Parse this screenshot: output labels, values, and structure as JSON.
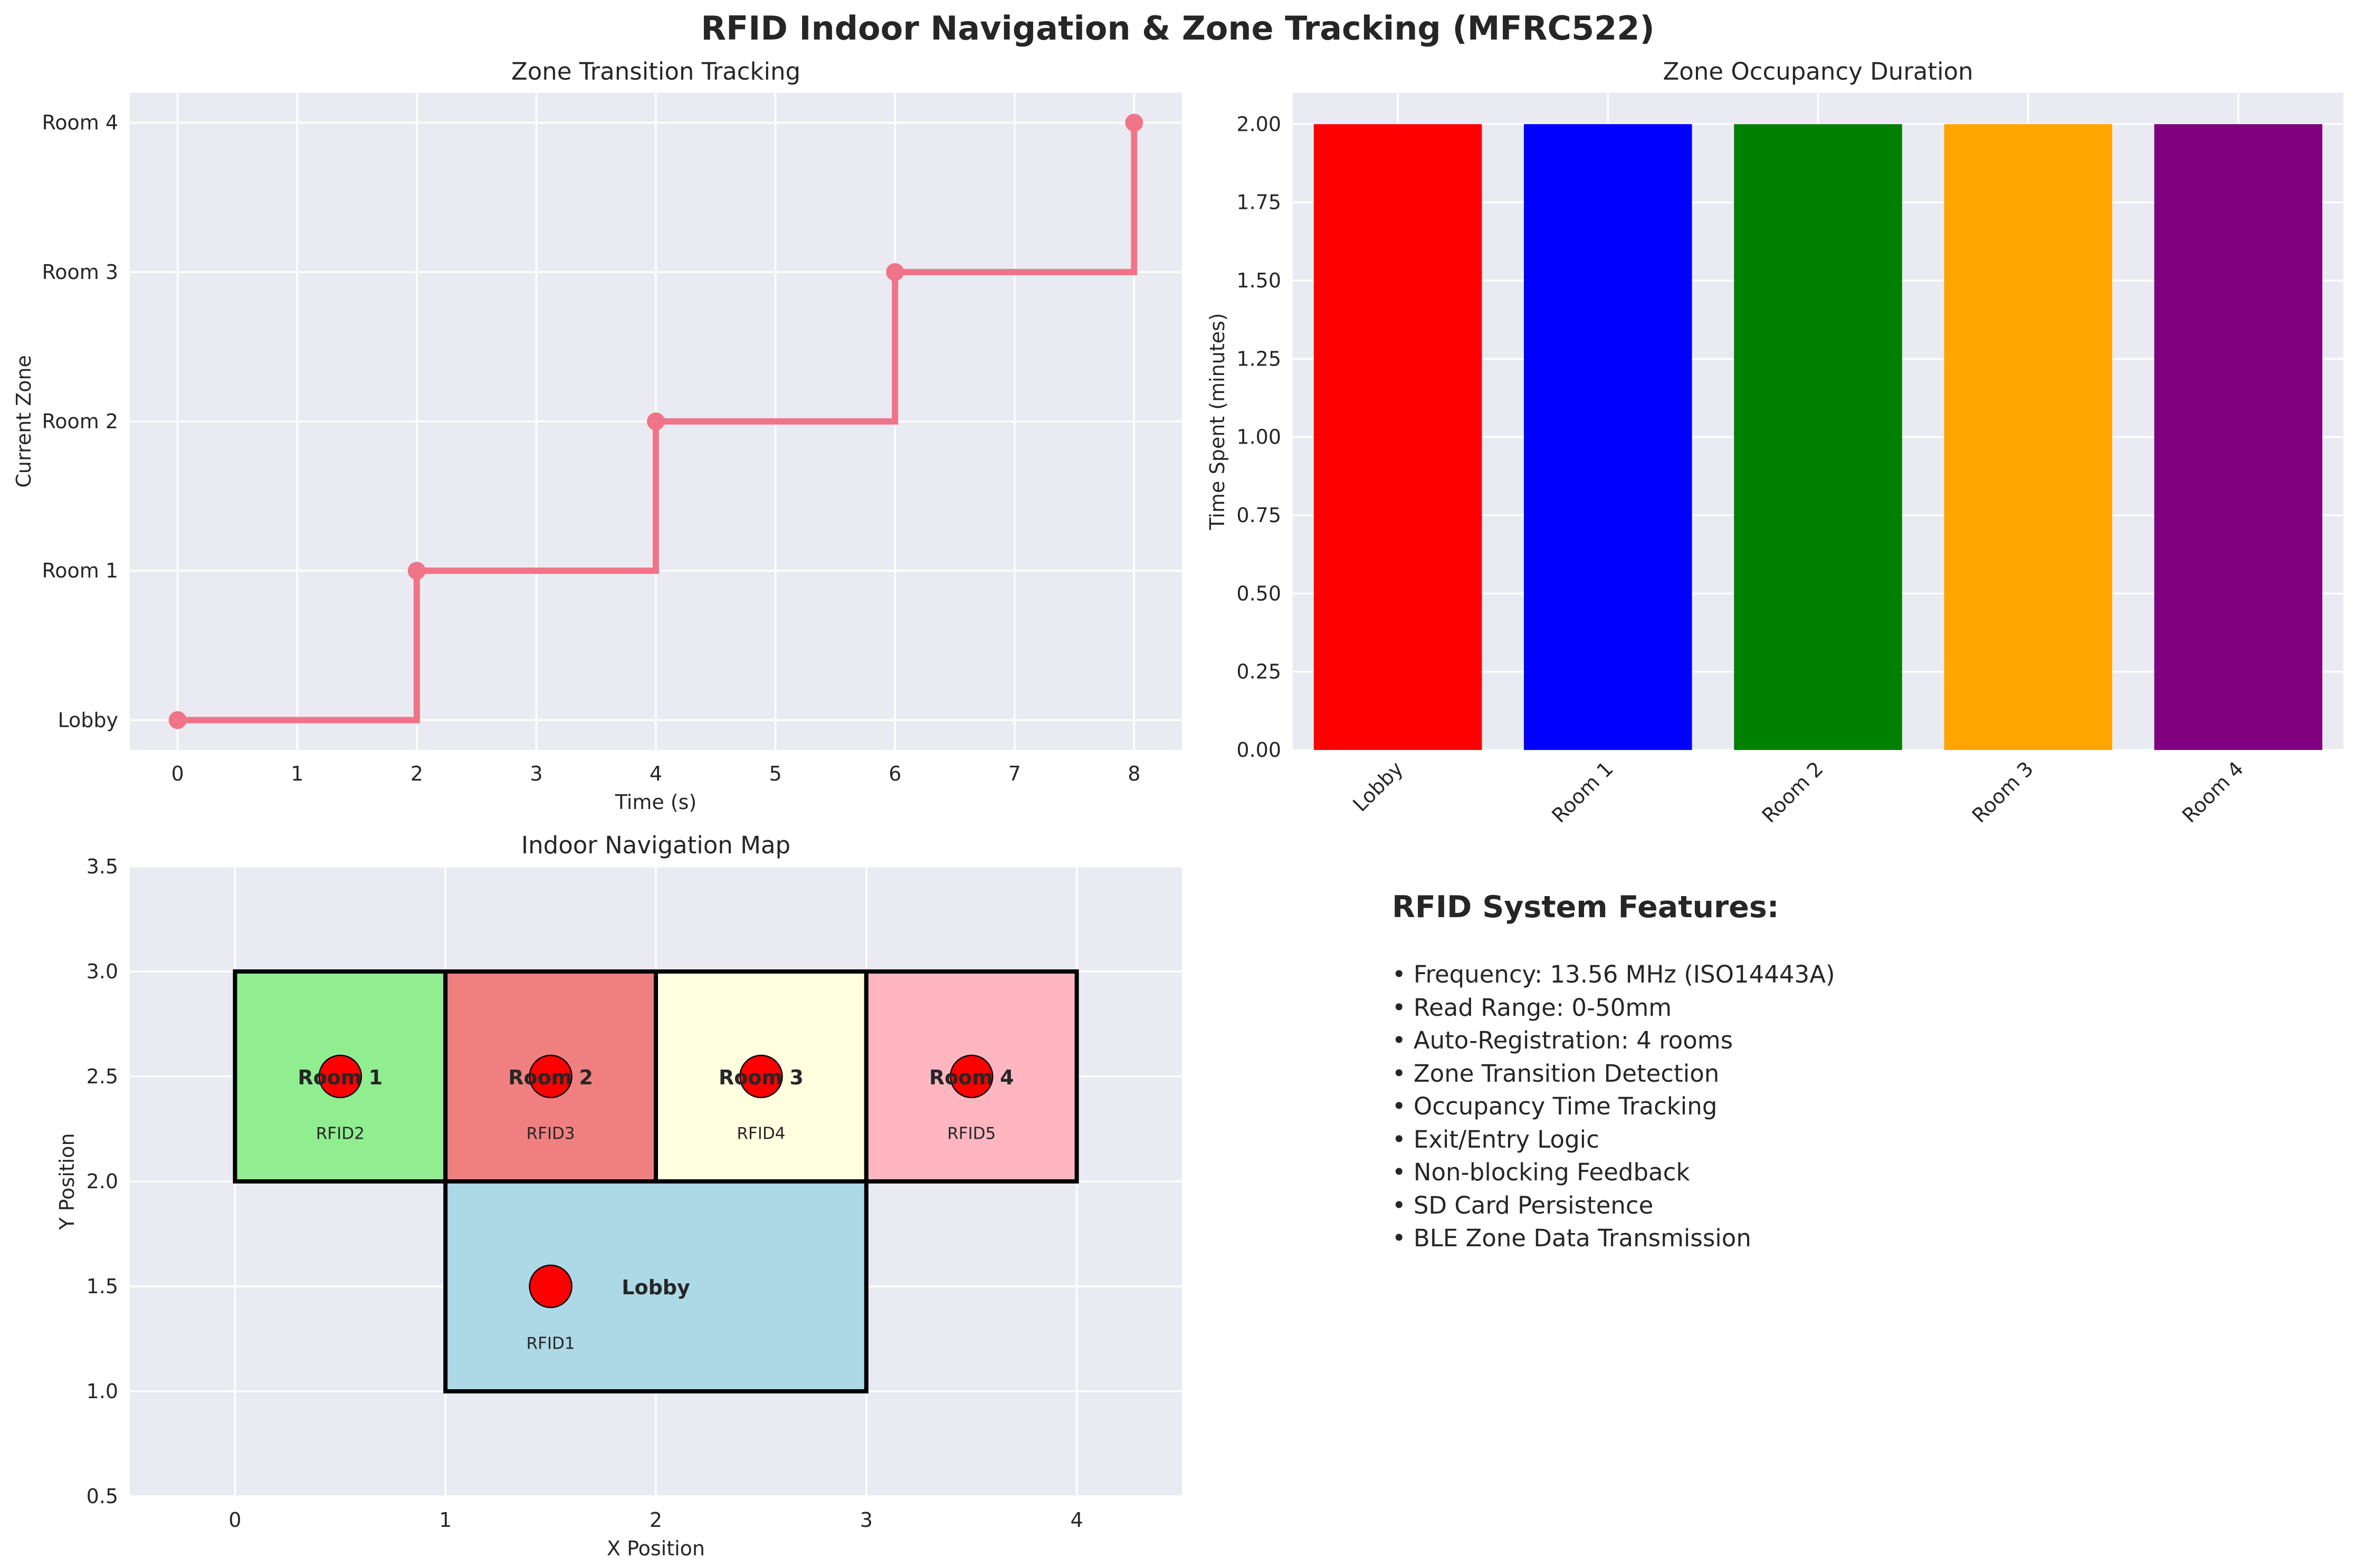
{
  "figure": {
    "title": "RFID Indoor Navigation & Zone Tracking (MFRC522)",
    "background": "#ffffff",
    "axes_face": "#eaeaf2",
    "grid_color": "#ffffff",
    "spine_color": "#000000"
  },
  "chart_data": [
    {
      "type": "line",
      "title": "Zone Transition Tracking",
      "xlabel": "Time (s)",
      "ylabel": "Current Zone",
      "line_style": "step",
      "color": "#f07487",
      "x": [
        0,
        2,
        4,
        6,
        8
      ],
      "y": [
        "Lobby",
        "Room 1",
        "Room 2",
        "Room 3",
        "Room 4"
      ],
      "y_categories": [
        "Lobby",
        "Room 1",
        "Room 2",
        "Room 3",
        "Room 4"
      ],
      "xlim": [
        -0.4,
        8.4
      ],
      "ylim": [
        -0.2,
        4.2
      ],
      "xticks": [
        0,
        1,
        2,
        3,
        4,
        5,
        6,
        7,
        8
      ],
      "grid": true
    },
    {
      "type": "bar",
      "title": "Zone Occupancy Duration",
      "xlabel": "",
      "ylabel": "Time Spent (minutes)",
      "categories": [
        "Lobby",
        "Room 1",
        "Room 2",
        "Room 3",
        "Room 4"
      ],
      "values": [
        2,
        2,
        2,
        2,
        2
      ],
      "colors": [
        "#ff0000",
        "#0000ff",
        "#008000",
        "#ffa500",
        "#800080"
      ],
      "ylim": [
        0,
        2.1
      ],
      "yticks": [
        "0.00",
        "0.25",
        "0.50",
        "0.75",
        "1.00",
        "1.25",
        "1.50",
        "1.75",
        "2.00"
      ],
      "xtick_rotation": 45,
      "grid": true
    },
    {
      "type": "map",
      "title": "Indoor Navigation Map",
      "xlabel": "X Position",
      "ylabel": "Y Position",
      "xlim": [
        -0.5,
        4.5
      ],
      "ylim": [
        0.5,
        3.5
      ],
      "xticks": [
        "0",
        "1",
        "2",
        "3",
        "4"
      ],
      "yticks": [
        "0.5",
        "1.0",
        "1.5",
        "2.0",
        "2.5",
        "3.0",
        "3.5"
      ],
      "grid": true,
      "rooms": [
        {
          "name": "Room 1",
          "rfid": "RFID2",
          "x0": 0,
          "y0": 2,
          "x1": 1,
          "y1": 3,
          "color": "#90ee90",
          "tag_x": 0.5,
          "tag_y": 2.5
        },
        {
          "name": "Room 2",
          "rfid": "RFID3",
          "x0": 1,
          "y0": 2,
          "x1": 2,
          "y1": 3,
          "color": "#f08080",
          "tag_x": 1.5,
          "tag_y": 2.5
        },
        {
          "name": "Room 3",
          "rfid": "RFID4",
          "x0": 2,
          "y0": 2,
          "x1": 3,
          "y1": 3,
          "color": "#ffffe0",
          "tag_x": 2.5,
          "tag_y": 2.5
        },
        {
          "name": "Room 4",
          "rfid": "RFID5",
          "x0": 3,
          "y0": 2,
          "x1": 4,
          "y1": 3,
          "color": "#ffb6c1",
          "tag_x": 3.5,
          "tag_y": 2.5
        },
        {
          "name": "Lobby",
          "rfid": "RFID1",
          "x0": 1,
          "y0": 1,
          "x1": 3,
          "y1": 2,
          "color": "#add8e6",
          "tag_x": 1.5,
          "tag_y": 1.5
        }
      ],
      "tag_color": "#ff0000"
    }
  ],
  "features": {
    "title": "RFID System Features:",
    "items": [
      "• Frequency: 13.56 MHz (ISO14443A)",
      "• Read Range: 0-50mm",
      "• Auto-Registration: 4 rooms",
      "• Zone Transition Detection",
      "• Occupancy Time Tracking",
      "• Exit/Entry Logic",
      "• Non-blocking Feedback",
      "• SD Card Persistence",
      "• BLE Zone Data Transmission"
    ]
  }
}
